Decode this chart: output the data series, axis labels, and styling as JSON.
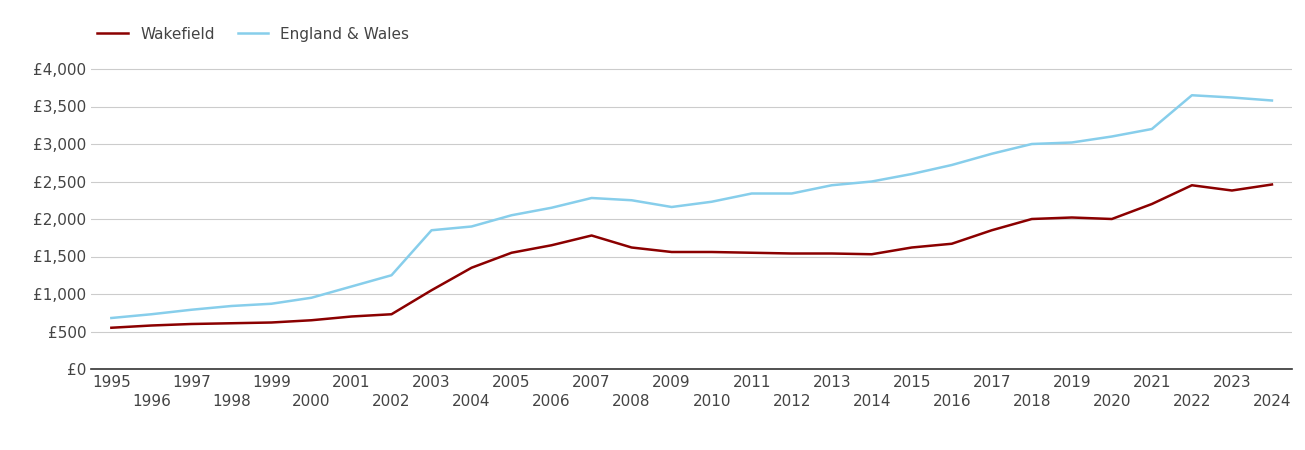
{
  "years": [
    1995,
    1996,
    1997,
    1998,
    1999,
    2000,
    2001,
    2002,
    2003,
    2004,
    2005,
    2006,
    2007,
    2008,
    2009,
    2010,
    2011,
    2012,
    2013,
    2014,
    2015,
    2016,
    2017,
    2018,
    2019,
    2020,
    2021,
    2022,
    2023,
    2024
  ],
  "wakefield": [
    550,
    580,
    600,
    610,
    620,
    650,
    700,
    730,
    1050,
    1350,
    1550,
    1650,
    1780,
    1620,
    1560,
    1560,
    1550,
    1540,
    1540,
    1530,
    1620,
    1670,
    1850,
    2000,
    2020,
    2000,
    2200,
    2450,
    2380,
    2460
  ],
  "england_wales": [
    680,
    730,
    790,
    840,
    870,
    950,
    1100,
    1250,
    1850,
    1900,
    2050,
    2150,
    2280,
    2250,
    2160,
    2230,
    2340,
    2340,
    2450,
    2500,
    2600,
    2720,
    2870,
    3000,
    3020,
    3100,
    3200,
    3650,
    3620,
    3580
  ],
  "wakefield_color": "#8B0000",
  "england_wales_color": "#87CEEB",
  "line_width": 1.8,
  "ylim": [
    0,
    4200
  ],
  "yticks": [
    0,
    500,
    1000,
    1500,
    2000,
    2500,
    3000,
    3500,
    4000
  ],
  "ytick_labels": [
    "£0",
    "£500",
    "£1,000",
    "£1,500",
    "£2,000",
    "£2,500",
    "£3,000",
    "£3,500",
    "£4,000"
  ],
  "legend_wakefield": "Wakefield",
  "legend_england_wales": "England & Wales",
  "background_color": "#ffffff",
  "grid_color": "#cccccc",
  "tick_fontsize": 11,
  "legend_fontsize": 11
}
